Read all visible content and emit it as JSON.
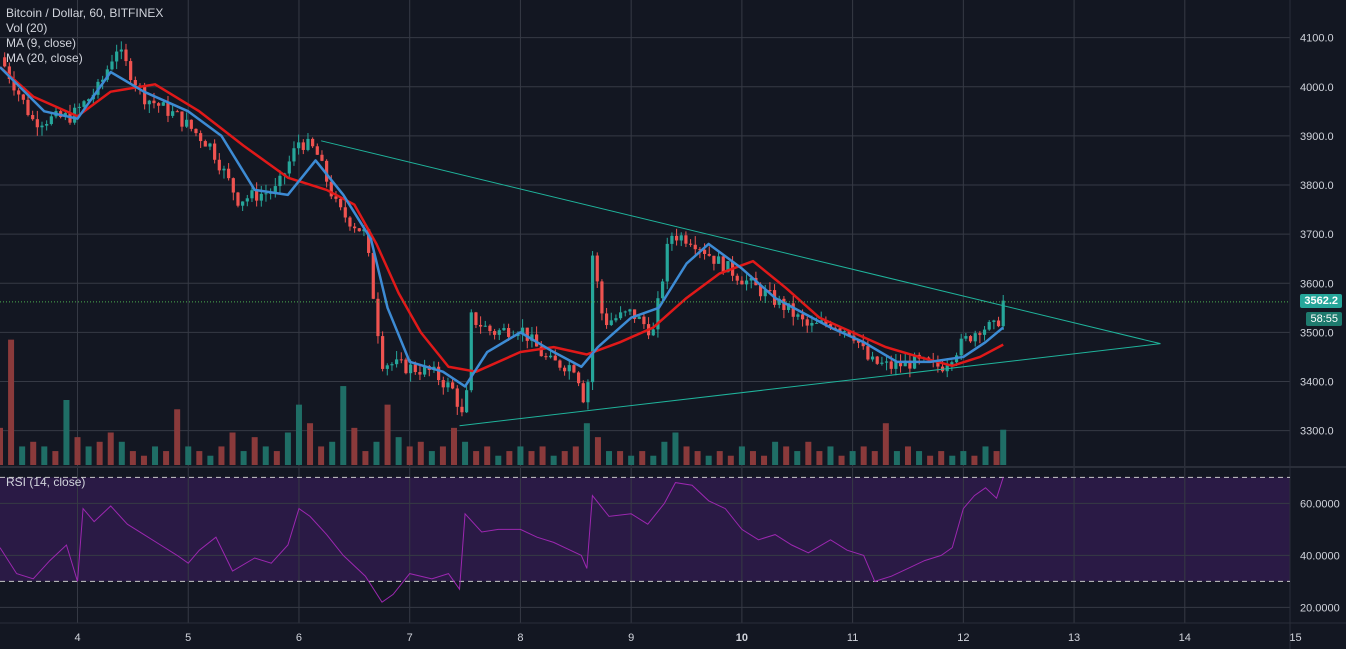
{
  "legend": {
    "symbol": "Bitcoin / Dollar, 60, BITFINEX",
    "vol": "Vol (20)",
    "ma9": "MA (9, close)",
    "ma20": "MA (20, close)",
    "rsi": "RSI (14, close)"
  },
  "price_tag": "3562.2",
  "countdown_tag": "58:55",
  "colors": {
    "background": "#131722",
    "grid": "#363a45",
    "up": "#26a69a",
    "down": "#ef5350",
    "ma9": "#3d8bd4",
    "ma20": "#e01919",
    "triangle": "#1fb39b",
    "rsi_line": "#9c27b0",
    "rsi_band": "#2a1a45",
    "price_line": "#4caf50"
  },
  "chart_data": [
    {
      "type": "candlestick",
      "title": "Bitcoin / Dollar, 60, BITFINEX",
      "x_ticks": [
        "4",
        "5",
        "6",
        "7",
        "8",
        "9",
        "10",
        "11",
        "12",
        "13",
        "14",
        "15"
      ],
      "y_ticks": [
        "4100.0",
        "4000.0",
        "3900.0",
        "3800.0",
        "3700.0",
        "3600.0",
        "3500.0",
        "3400.0",
        "3300.0"
      ],
      "ylim": [
        3230,
        4140
      ],
      "xlim": [
        3.3,
        14.95
      ],
      "last_price": 3562.2,
      "close_path": [
        [
          3.3,
          4060
        ],
        [
          3.6,
          3930
        ],
        [
          3.95,
          3940
        ],
        [
          4.2,
          4000
        ],
        [
          4.35,
          4080
        ],
        [
          4.6,
          3980
        ],
        [
          4.9,
          3940
        ],
        [
          5.2,
          3880
        ],
        [
          5.45,
          3770
        ],
        [
          5.8,
          3790
        ],
        [
          6.0,
          3890
        ],
        [
          6.15,
          3870
        ],
        [
          6.35,
          3750
        ],
        [
          6.6,
          3700
        ],
        [
          6.75,
          3440
        ],
        [
          6.95,
          3430
        ],
        [
          7.2,
          3420
        ],
        [
          7.4,
          3380
        ],
        [
          7.5,
          3310
        ],
        [
          7.55,
          3530
        ],
        [
          7.75,
          3500
        ],
        [
          8.0,
          3510
        ],
        [
          8.25,
          3440
        ],
        [
          8.5,
          3430
        ],
        [
          8.6,
          3340
        ],
        [
          8.65,
          3660
        ],
        [
          8.75,
          3520
        ],
        [
          9.0,
          3540
        ],
        [
          9.2,
          3500
        ],
        [
          9.35,
          3700
        ],
        [
          9.55,
          3690
        ],
        [
          9.75,
          3650
        ],
        [
          10.0,
          3610
        ],
        [
          10.2,
          3580
        ],
        [
          10.4,
          3550
        ],
        [
          10.6,
          3510
        ],
        [
          10.8,
          3520
        ],
        [
          11.0,
          3500
        ],
        [
          11.15,
          3440
        ],
        [
          11.35,
          3430
        ],
        [
          11.55,
          3440
        ],
        [
          11.8,
          3430
        ],
        [
          12.0,
          3480
        ],
        [
          12.15,
          3510
        ],
        [
          12.3,
          3510
        ],
        [
          12.36,
          3562.2
        ]
      ],
      "ma9_path": [
        [
          3.3,
          4040
        ],
        [
          3.7,
          3950
        ],
        [
          4.0,
          3935
        ],
        [
          4.3,
          4030
        ],
        [
          4.6,
          3990
        ],
        [
          5.0,
          3950
        ],
        [
          5.3,
          3900
        ],
        [
          5.6,
          3790
        ],
        [
          5.9,
          3780
        ],
        [
          6.15,
          3850
        ],
        [
          6.4,
          3780
        ],
        [
          6.65,
          3690
        ],
        [
          6.8,
          3550
        ],
        [
          7.0,
          3440
        ],
        [
          7.3,
          3420
        ],
        [
          7.5,
          3390
        ],
        [
          7.7,
          3460
        ],
        [
          8.0,
          3500
        ],
        [
          8.3,
          3460
        ],
        [
          8.55,
          3430
        ],
        [
          8.7,
          3470
        ],
        [
          9.0,
          3530
        ],
        [
          9.25,
          3550
        ],
        [
          9.5,
          3640
        ],
        [
          9.7,
          3680
        ],
        [
          10.0,
          3630
        ],
        [
          10.3,
          3570
        ],
        [
          10.55,
          3540
        ],
        [
          10.8,
          3510
        ],
        [
          11.1,
          3480
        ],
        [
          11.4,
          3440
        ],
        [
          11.7,
          3440
        ],
        [
          12.0,
          3450
        ],
        [
          12.2,
          3480
        ],
        [
          12.36,
          3510
        ]
      ],
      "ma20_path": [
        [
          3.3,
          4040
        ],
        [
          3.6,
          3980
        ],
        [
          4.0,
          3940
        ],
        [
          4.3,
          3990
        ],
        [
          4.7,
          4005
        ],
        [
          5.1,
          3950
        ],
        [
          5.5,
          3880
        ],
        [
          5.9,
          3815
        ],
        [
          6.25,
          3790
        ],
        [
          6.5,
          3760
        ],
        [
          6.7,
          3680
        ],
        [
          6.9,
          3580
        ],
        [
          7.1,
          3500
        ],
        [
          7.35,
          3430
        ],
        [
          7.6,
          3420
        ],
        [
          8.0,
          3460
        ],
        [
          8.3,
          3470
        ],
        [
          8.6,
          3455
        ],
        [
          8.9,
          3480
        ],
        [
          9.2,
          3510
        ],
        [
          9.5,
          3570
        ],
        [
          9.8,
          3620
        ],
        [
          10.1,
          3645
        ],
        [
          10.4,
          3590
        ],
        [
          10.7,
          3530
        ],
        [
          11.0,
          3500
        ],
        [
          11.3,
          3470
        ],
        [
          11.6,
          3450
        ],
        [
          11.9,
          3432
        ],
        [
          12.15,
          3450
        ],
        [
          12.36,
          3475
        ]
      ],
      "triangle": {
        "upper": [
          [
            6.2,
            3890
          ],
          [
            13.78,
            3477
          ]
        ],
        "lower": [
          [
            7.45,
            3310
          ],
          [
            13.78,
            3477
          ]
        ]
      },
      "volume": [
        [
          "3.3",
          40,
          0
        ],
        [
          "3.4",
          135,
          0
        ],
        [
          "3.5",
          20,
          1
        ],
        [
          "3.6",
          25,
          0
        ],
        [
          "3.7",
          20,
          1
        ],
        [
          "3.8",
          15,
          0
        ],
        [
          "3.9",
          70,
          1
        ],
        [
          "4.0",
          30,
          0
        ],
        [
          "4.1",
          20,
          1
        ],
        [
          "4.2",
          25,
          0
        ],
        [
          "4.3",
          35,
          0
        ],
        [
          "4.4",
          25,
          1
        ],
        [
          "4.5",
          15,
          0
        ],
        [
          "4.6",
          10,
          0
        ],
        [
          "4.7",
          20,
          1
        ],
        [
          "4.8",
          15,
          0
        ],
        [
          "4.9",
          60,
          0
        ],
        [
          "5.0",
          20,
          1
        ],
        [
          "5.1",
          15,
          0
        ],
        [
          "5.2",
          10,
          1
        ],
        [
          "5.3",
          20,
          0
        ],
        [
          "5.4",
          35,
          0
        ],
        [
          "5.5",
          15,
          1
        ],
        [
          "5.6",
          30,
          0
        ],
        [
          "5.7",
          20,
          1
        ],
        [
          "5.8",
          15,
          0
        ],
        [
          "5.9",
          35,
          1
        ],
        [
          "6.0",
          65,
          1
        ],
        [
          "6.1",
          45,
          0
        ],
        [
          "6.2",
          20,
          0
        ],
        [
          "6.3",
          25,
          1
        ],
        [
          "6.4",
          85,
          1
        ],
        [
          "6.5",
          40,
          0
        ],
        [
          "6.6",
          15,
          0
        ],
        [
          "6.7",
          25,
          1
        ],
        [
          "6.8",
          65,
          0
        ],
        [
          "6.9",
          30,
          1
        ],
        [
          "7.0",
          20,
          0
        ],
        [
          "7.1",
          25,
          0
        ],
        [
          "7.2",
          15,
          1
        ],
        [
          "7.3",
          20,
          0
        ],
        [
          "7.4",
          40,
          0
        ],
        [
          "7.5",
          25,
          1
        ],
        [
          "7.6",
          15,
          0
        ],
        [
          "7.7",
          20,
          0
        ],
        [
          "7.8",
          10,
          1
        ],
        [
          "7.9",
          15,
          0
        ],
        [
          "8.0",
          20,
          1
        ],
        [
          "8.1",
          15,
          0
        ],
        [
          "8.2",
          20,
          0
        ],
        [
          "8.3",
          10,
          1
        ],
        [
          "8.4",
          15,
          0
        ],
        [
          "8.5",
          20,
          0
        ],
        [
          "8.6",
          45,
          1
        ],
        [
          "8.7",
          30,
          0
        ],
        [
          "8.8",
          15,
          1
        ],
        [
          "8.9",
          15,
          0
        ],
        [
          "9.0",
          10,
          1
        ],
        [
          "9.1",
          15,
          0
        ],
        [
          "9.2",
          10,
          1
        ],
        [
          "9.3",
          25,
          1
        ],
        [
          "9.4",
          35,
          1
        ],
        [
          "9.5",
          20,
          0
        ],
        [
          "9.6",
          15,
          0
        ],
        [
          "9.7",
          10,
          1
        ],
        [
          "9.8",
          15,
          0
        ],
        [
          "9.9",
          10,
          0
        ],
        [
          "10.0",
          20,
          1
        ],
        [
          "10.1",
          15,
          0
        ],
        [
          "10.2",
          10,
          0
        ],
        [
          "10.3",
          25,
          1
        ],
        [
          "10.4",
          20,
          0
        ],
        [
          "10.5",
          15,
          1
        ],
        [
          "10.6",
          25,
          0
        ],
        [
          "10.7",
          15,
          0
        ],
        [
          "10.8",
          20,
          1
        ],
        [
          "10.9",
          10,
          0
        ],
        [
          "11.0",
          15,
          1
        ],
        [
          "11.1",
          20,
          0
        ],
        [
          "11.2",
          15,
          0
        ],
        [
          "11.3",
          45,
          0
        ],
        [
          "11.4",
          15,
          1
        ],
        [
          "11.5",
          20,
          0
        ],
        [
          "11.6",
          15,
          1
        ],
        [
          "11.7",
          10,
          0
        ],
        [
          "11.8",
          15,
          0
        ],
        [
          "11.9",
          10,
          1
        ],
        [
          "12.0",
          15,
          1
        ],
        [
          "12.1",
          10,
          0
        ],
        [
          "12.2",
          20,
          1
        ],
        [
          "12.3",
          15,
          0
        ],
        [
          "12.36",
          38,
          1
        ]
      ],
      "volume_scale_max": 140
    },
    {
      "type": "line",
      "title": "RSI (14, close)",
      "y_ticks": [
        "60.0000",
        "40.0000",
        "20.0000"
      ],
      "ylim": [
        14,
        74
      ],
      "band": [
        30,
        70
      ],
      "values": [
        [
          3.3,
          43
        ],
        [
          3.45,
          33
        ],
        [
          3.6,
          31
        ],
        [
          3.75,
          38
        ],
        [
          3.9,
          44
        ],
        [
          4.0,
          30
        ],
        [
          4.05,
          58
        ],
        [
          4.15,
          53
        ],
        [
          4.3,
          59
        ],
        [
          4.45,
          52
        ],
        [
          4.6,
          48
        ],
        [
          4.75,
          44
        ],
        [
          4.9,
          40
        ],
        [
          5.0,
          37
        ],
        [
          5.1,
          42
        ],
        [
          5.25,
          47
        ],
        [
          5.4,
          34
        ],
        [
          5.6,
          39
        ],
        [
          5.75,
          37
        ],
        [
          5.9,
          44
        ],
        [
          6.0,
          58
        ],
        [
          6.1,
          55
        ],
        [
          6.25,
          48
        ],
        [
          6.4,
          40
        ],
        [
          6.6,
          32
        ],
        [
          6.75,
          22
        ],
        [
          6.85,
          25
        ],
        [
          7.0,
          33
        ],
        [
          7.2,
          31
        ],
        [
          7.35,
          33
        ],
        [
          7.45,
          27
        ],
        [
          7.5,
          56
        ],
        [
          7.65,
          49
        ],
        [
          7.8,
          50
        ],
        [
          8.0,
          50
        ],
        [
          8.15,
          47
        ],
        [
          8.3,
          45
        ],
        [
          8.45,
          42
        ],
        [
          8.55,
          40
        ],
        [
          8.6,
          35
        ],
        [
          8.65,
          63
        ],
        [
          8.8,
          55
        ],
        [
          9.0,
          56
        ],
        [
          9.15,
          52
        ],
        [
          9.3,
          60
        ],
        [
          9.4,
          68
        ],
        [
          9.55,
          67
        ],
        [
          9.7,
          61
        ],
        [
          9.85,
          58
        ],
        [
          10.0,
          50
        ],
        [
          10.15,
          46
        ],
        [
          10.3,
          48
        ],
        [
          10.45,
          44
        ],
        [
          10.6,
          41
        ],
        [
          10.8,
          46
        ],
        [
          10.95,
          42
        ],
        [
          11.1,
          40
        ],
        [
          11.2,
          30
        ],
        [
          11.35,
          32
        ],
        [
          11.5,
          35
        ],
        [
          11.65,
          38
        ],
        [
          11.8,
          40
        ],
        [
          11.9,
          43
        ],
        [
          12.0,
          58
        ],
        [
          12.1,
          63
        ],
        [
          12.2,
          66
        ],
        [
          12.3,
          62
        ],
        [
          12.36,
          70
        ]
      ]
    }
  ]
}
